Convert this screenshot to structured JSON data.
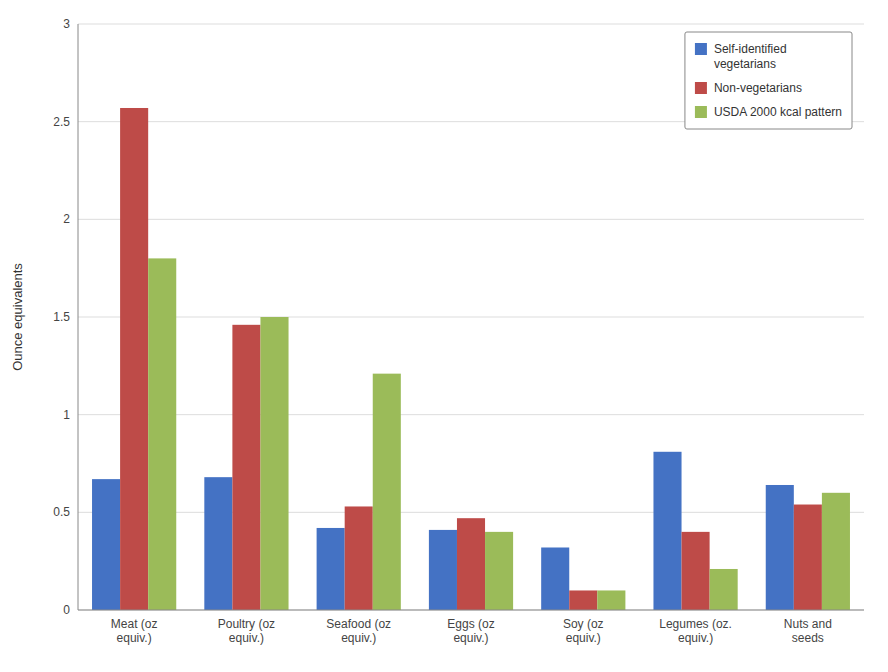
{
  "chart_data": {
    "type": "bar",
    "categories": [
      "Meat (oz\nequiv.)",
      "Poultry (oz\nequiv.)",
      "Seafood (oz\nequiv.)",
      "Eggs (oz\nequiv.)",
      "Soy (oz\nequiv.)",
      "Legumes (oz.\nequiv.)",
      "Nuts and\nseeds"
    ],
    "series": [
      {
        "name": "Self-identified\nvegetarians",
        "color": "#4472C4",
        "values": [
          0.67,
          0.68,
          0.42,
          0.41,
          0.32,
          0.81,
          0.64
        ]
      },
      {
        "name": "Non-vegetarians",
        "color": "#BE4B48",
        "values": [
          2.57,
          1.46,
          0.53,
          0.47,
          0.1,
          0.4,
          0.54
        ]
      },
      {
        "name": "USDA 2000 kcal pattern",
        "color": "#9BBB59",
        "values": [
          1.8,
          1.5,
          1.21,
          0.4,
          0.1,
          0.21,
          0.6
        ]
      }
    ],
    "ylabel": "Ounce equivalents",
    "ylim": [
      0,
      3
    ],
    "yticks": [
      0,
      0.5,
      1,
      1.5,
      2,
      2.5,
      3
    ],
    "grid": true,
    "legend": "upper right"
  }
}
